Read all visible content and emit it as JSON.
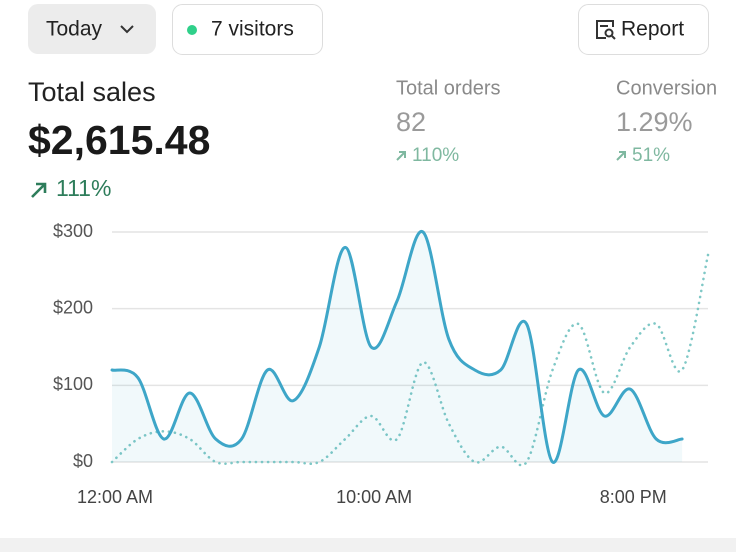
{
  "header": {
    "date_button": "Today",
    "visitors": "7 visitors",
    "report_button": "Report"
  },
  "metrics": [
    {
      "label": "Total sales",
      "value": "$2,615.48",
      "change": "111%"
    },
    {
      "label": "Total orders",
      "value": "82",
      "change": "110%"
    },
    {
      "label": "Conversion",
      "value": "1.29%",
      "change": "51%"
    }
  ],
  "chart_data": {
    "type": "line",
    "categories": [
      "12:00 AM",
      null,
      null,
      null,
      null,
      null,
      null,
      null,
      null,
      null,
      "10:00 AM",
      null,
      null,
      null,
      null,
      null,
      null,
      null,
      null,
      null,
      "8:00 PM",
      null,
      null,
      null
    ],
    "series": [
      {
        "color": "#3ea6c8",
        "style": "solid",
        "values": [
          120,
          110,
          30,
          90,
          30,
          30,
          120,
          80,
          150,
          280,
          150,
          210,
          300,
          160,
          120,
          120,
          180,
          0,
          120,
          60,
          95,
          30,
          30,
          null
        ]
      },
      {
        "color": "#7fc8c6",
        "style": "dotted",
        "values": [
          0,
          30,
          40,
          30,
          0,
          0,
          0,
          0,
          0,
          30,
          60,
          30,
          130,
          50,
          0,
          20,
          0,
          120,
          180,
          90,
          150,
          180,
          120,
          270
        ]
      }
    ],
    "ylim": [
      0,
      300
    ],
    "yticks": [
      {
        "value": 0,
        "label": "$0"
      },
      {
        "value": 100,
        "label": "$100"
      },
      {
        "value": 200,
        "label": "$200"
      },
      {
        "value": 300,
        "label": "$300"
      }
    ],
    "grid": true
  }
}
